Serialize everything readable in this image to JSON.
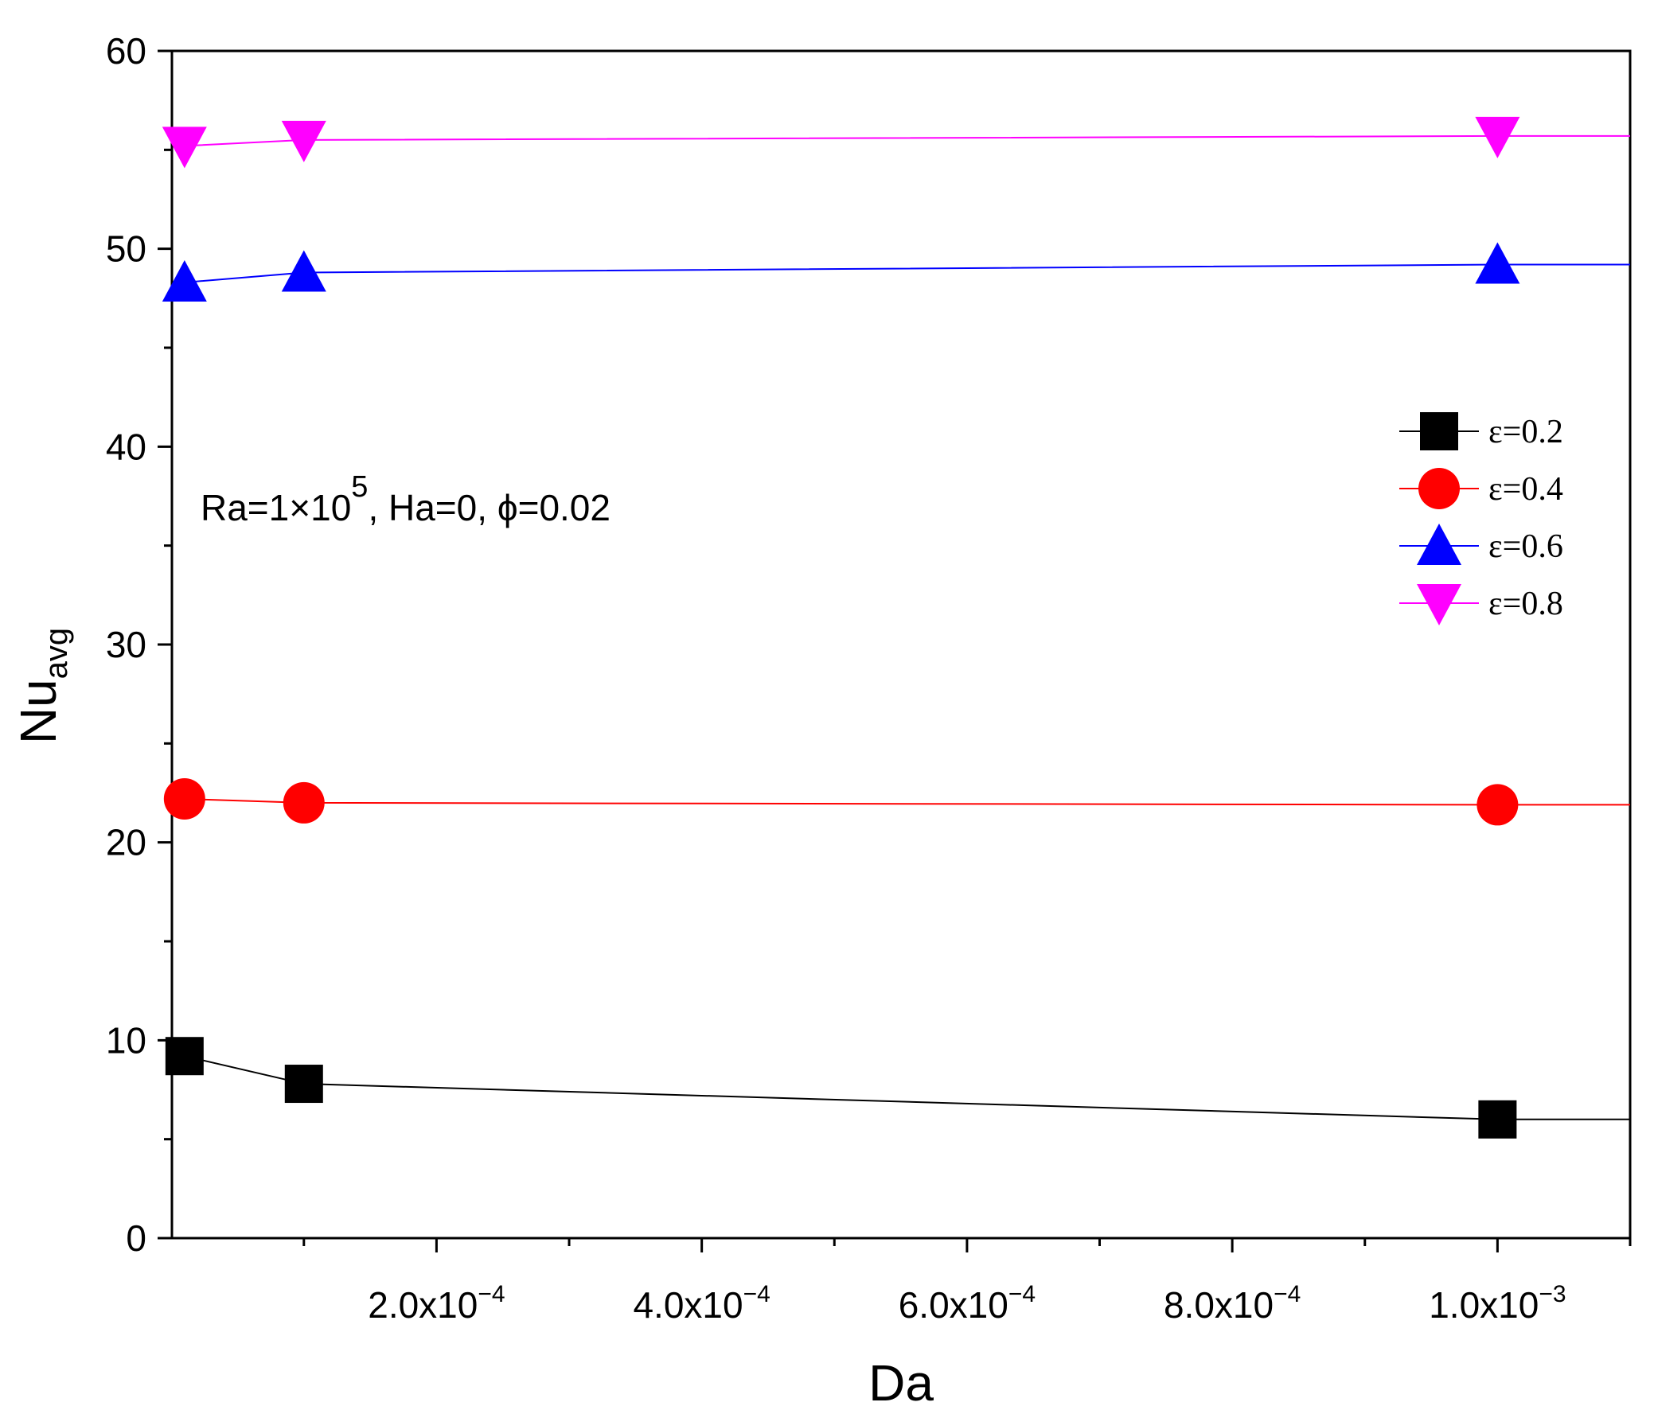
{
  "chart_data": {
    "type": "line",
    "title": "",
    "xlabel": "Da",
    "ylabel": {
      "main": "Nu",
      "sub": "avg"
    },
    "xlim": [
      5e-07,
      0.0011
    ],
    "ylim": [
      0,
      60
    ],
    "x_ticks": [
      {
        "value": 0.0002,
        "mantissa": "2.0x10",
        "exp": "−4"
      },
      {
        "value": 0.0004,
        "mantissa": "4.0x10",
        "exp": "−4"
      },
      {
        "value": 0.0006,
        "mantissa": "6.0x10",
        "exp": "−4"
      },
      {
        "value": 0.0008,
        "mantissa": "8.0x10",
        "exp": "−4"
      },
      {
        "value": 0.001,
        "mantissa": "1.0x10",
        "exp": "−3"
      }
    ],
    "x_minor_ticks": [
      0.0001,
      0.0003,
      0.0005,
      0.0007,
      0.0009,
      0.0011
    ],
    "y_ticks": [
      0,
      10,
      20,
      30,
      40,
      50,
      60
    ],
    "y_minor_ticks": [
      5,
      15,
      25,
      35,
      45,
      55
    ],
    "x": [
      1e-05,
      0.0001,
      0.001
    ],
    "series": [
      {
        "name": "ε=0.2",
        "color": "#000000",
        "marker": "square",
        "values": [
          9.2,
          7.8,
          6.0
        ],
        "end_value": 6.0
      },
      {
        "name": "ε=0.4",
        "color": "#ff0000",
        "marker": "circle",
        "values": [
          22.2,
          22.0,
          21.9
        ],
        "end_value": 21.9
      },
      {
        "name": "ε=0.6",
        "color": "#0000ff",
        "marker": "triangle-up",
        "values": [
          48.3,
          48.8,
          49.2
        ],
        "end_value": 49.2
      },
      {
        "name": "ε=0.8",
        "color": "#ff00ff",
        "marker": "triangle-down",
        "values": [
          55.2,
          55.5,
          55.7
        ],
        "end_value": 55.7
      }
    ],
    "legend_position": "right",
    "annotation": {
      "part1": "Ra=1",
      "times": "×",
      "part2": "10",
      "exp": "5",
      "part3": ", Ha=0, ",
      "phi": "ϕ",
      "part4": "=0.02"
    }
  }
}
